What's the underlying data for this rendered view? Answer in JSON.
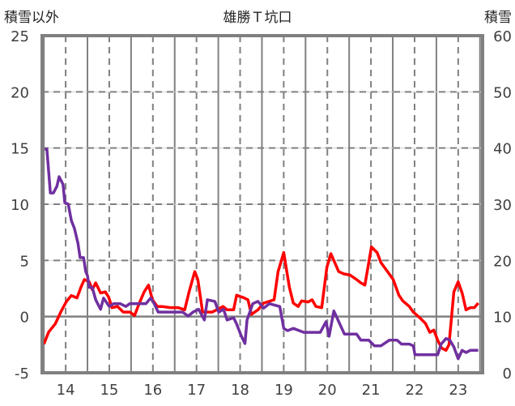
{
  "chart_data": {
    "type": "line",
    "title": "雄勝Ｔ坑口",
    "ylabel_left": "積雪以外",
    "ylabel_right": "積雪",
    "xlabel": "",
    "xlim": [
      13.46,
      23.56
    ],
    "ylim_left": [
      -5,
      25
    ],
    "ylim_right": [
      0,
      60
    ],
    "x_ticks": [
      14,
      15,
      16,
      17,
      18,
      19,
      20,
      21,
      22,
      23
    ],
    "x_tick_labels": [
      "14",
      "15",
      "16",
      "17",
      "18",
      "19",
      "20",
      "21",
      "22",
      "23"
    ],
    "y_left_ticks": [
      -5,
      0,
      5,
      10,
      15,
      20,
      25
    ],
    "y_left_tick_labels": [
      "-5",
      "0",
      "5",
      "10",
      "15",
      "20",
      "25"
    ],
    "y_right_ticks": [
      0,
      10,
      20,
      30,
      40,
      50,
      60
    ],
    "y_right_tick_labels": [
      "0",
      "10",
      "20",
      "30",
      "40",
      "50",
      "60"
    ],
    "grid": true,
    "legend": "none",
    "colors": {
      "red_series": "#ff0000",
      "purple_series": "#7030a0",
      "grid": "#808080",
      "frame": "#808080"
    },
    "series": [
      {
        "name": "積雪以外",
        "axis": "left",
        "color": "#ff0000",
        "points": [
          [
            13.5,
            -2.45
          ],
          [
            13.61,
            -1.37
          ],
          [
            13.76,
            -0.65
          ],
          [
            13.89,
            0.43
          ],
          [
            14.02,
            1.37
          ],
          [
            14.13,
            1.87
          ],
          [
            14.26,
            1.66
          ],
          [
            14.35,
            2.6
          ],
          [
            14.43,
            3.3
          ],
          [
            14.54,
            3.1
          ],
          [
            14.61,
            2.4
          ],
          [
            14.69,
            3.0
          ],
          [
            14.8,
            2.1
          ],
          [
            14.91,
            2.2
          ],
          [
            14.99,
            1.7
          ],
          [
            15.06,
            0.8
          ],
          [
            15.19,
            0.9
          ],
          [
            15.32,
            0.4
          ],
          [
            15.47,
            0.4
          ],
          [
            15.58,
            0.1
          ],
          [
            15.69,
            1.2
          ],
          [
            15.8,
            2.2
          ],
          [
            15.9,
            2.8
          ],
          [
            15.99,
            1.5
          ],
          [
            16.1,
            0.9
          ],
          [
            16.21,
            0.9
          ],
          [
            16.4,
            0.8
          ],
          [
            16.58,
            0.8
          ],
          [
            16.73,
            0.6
          ],
          [
            16.83,
            2.2
          ],
          [
            16.96,
            4.0
          ],
          [
            17.03,
            3.3
          ],
          [
            17.14,
            0.4
          ],
          [
            17.36,
            0.4
          ],
          [
            17.61,
            0.9
          ],
          [
            17.7,
            0.6
          ],
          [
            17.85,
            0.6
          ],
          [
            17.92,
            1.9
          ],
          [
            18.07,
            1.7
          ],
          [
            18.18,
            1.5
          ],
          [
            18.26,
            0.2
          ],
          [
            18.41,
            0.6
          ],
          [
            18.54,
            1.2
          ],
          [
            18.78,
            1.5
          ],
          [
            18.87,
            4.0
          ],
          [
            19.0,
            5.7
          ],
          [
            19.07,
            4.0
          ],
          [
            19.13,
            2.6
          ],
          [
            19.22,
            1.2
          ],
          [
            19.33,
            0.9
          ],
          [
            19.41,
            1.4
          ],
          [
            19.56,
            1.3
          ],
          [
            19.65,
            1.5
          ],
          [
            19.74,
            0.9
          ],
          [
            19.87,
            0.8
          ],
          [
            19.99,
            4.4
          ],
          [
            20.08,
            5.6
          ],
          [
            20.17,
            4.8
          ],
          [
            20.26,
            4.0
          ],
          [
            20.38,
            3.8
          ],
          [
            20.52,
            3.7
          ],
          [
            20.67,
            3.3
          ],
          [
            20.77,
            3.0
          ],
          [
            20.86,
            2.8
          ],
          [
            20.95,
            4.8
          ],
          [
            21.01,
            6.2
          ],
          [
            21.14,
            5.7
          ],
          [
            21.23,
            4.8
          ],
          [
            21.38,
            4.0
          ],
          [
            21.51,
            3.3
          ],
          [
            21.64,
            1.9
          ],
          [
            21.73,
            1.4
          ],
          [
            21.88,
            0.9
          ],
          [
            21.97,
            0.4
          ],
          [
            22.12,
            -0.1
          ],
          [
            22.25,
            -0.6
          ],
          [
            22.35,
            -1.4
          ],
          [
            22.44,
            -1.2
          ],
          [
            22.53,
            -2.1
          ],
          [
            22.62,
            -2.8
          ],
          [
            22.72,
            -3.0
          ],
          [
            22.79,
            -2.5
          ],
          [
            22.9,
            2.2
          ],
          [
            23.0,
            3.1
          ],
          [
            23.09,
            2.1
          ],
          [
            23.18,
            0.6
          ],
          [
            23.28,
            0.8
          ],
          [
            23.37,
            0.8
          ],
          [
            23.46,
            1.2
          ]
        ]
      },
      {
        "name": "積雪",
        "axis": "right",
        "color": "#7030a0",
        "points": [
          [
            13.52,
            39.8
          ],
          [
            13.57,
            39.8
          ],
          [
            13.65,
            32.0
          ],
          [
            13.72,
            32.0
          ],
          [
            13.8,
            33.2
          ],
          [
            13.85,
            34.9
          ],
          [
            13.94,
            33.5
          ],
          [
            13.98,
            30.3
          ],
          [
            14.06,
            30.0
          ],
          [
            14.13,
            27.1
          ],
          [
            14.2,
            25.7
          ],
          [
            14.28,
            23.1
          ],
          [
            14.33,
            20.5
          ],
          [
            14.41,
            20.5
          ],
          [
            14.46,
            18.0
          ],
          [
            14.5,
            17.3
          ],
          [
            14.54,
            15.2
          ],
          [
            14.61,
            15.2
          ],
          [
            14.69,
            13.0
          ],
          [
            14.8,
            11.3
          ],
          [
            14.87,
            13.3
          ],
          [
            15.0,
            11.8
          ],
          [
            15.1,
            12.3
          ],
          [
            15.25,
            12.3
          ],
          [
            15.38,
            11.8
          ],
          [
            15.47,
            12.3
          ],
          [
            15.69,
            12.3
          ],
          [
            15.84,
            12.3
          ],
          [
            15.95,
            13.3
          ],
          [
            16.03,
            12.3
          ],
          [
            16.12,
            10.8
          ],
          [
            16.4,
            10.8
          ],
          [
            16.68,
            10.8
          ],
          [
            16.81,
            10.1
          ],
          [
            16.92,
            10.8
          ],
          [
            17.05,
            11.3
          ],
          [
            17.18,
            9.4
          ],
          [
            17.25,
            13.0
          ],
          [
            17.42,
            12.7
          ],
          [
            17.51,
            10.8
          ],
          [
            17.62,
            11.3
          ],
          [
            17.7,
            9.4
          ],
          [
            17.85,
            9.8
          ],
          [
            17.92,
            8.7
          ],
          [
            18.03,
            6.5
          ],
          [
            18.11,
            5.2
          ],
          [
            18.16,
            9.4
          ],
          [
            18.29,
            12.3
          ],
          [
            18.41,
            12.7
          ],
          [
            18.54,
            11.5
          ],
          [
            18.67,
            12.3
          ],
          [
            18.81,
            12.0
          ],
          [
            18.91,
            11.8
          ],
          [
            19.0,
            7.9
          ],
          [
            19.09,
            7.5
          ],
          [
            19.22,
            7.9
          ],
          [
            19.46,
            7.2
          ],
          [
            19.84,
            7.2
          ],
          [
            19.97,
            9.1
          ],
          [
            20.04,
            6.5
          ],
          [
            20.15,
            11.0
          ],
          [
            20.26,
            9.1
          ],
          [
            20.39,
            6.9
          ],
          [
            20.67,
            6.9
          ],
          [
            20.77,
            5.8
          ],
          [
            20.95,
            5.8
          ],
          [
            21.08,
            4.8
          ],
          [
            21.23,
            4.8
          ],
          [
            21.42,
            5.8
          ],
          [
            21.6,
            5.8
          ],
          [
            21.7,
            5.1
          ],
          [
            21.88,
            5.1
          ],
          [
            21.97,
            4.8
          ],
          [
            22.01,
            3.2
          ],
          [
            22.53,
            3.2
          ],
          [
            22.61,
            5.1
          ],
          [
            22.72,
            6.1
          ],
          [
            22.81,
            5.8
          ],
          [
            22.9,
            4.6
          ],
          [
            23.0,
            2.5
          ],
          [
            23.09,
            4.0
          ],
          [
            23.18,
            3.6
          ],
          [
            23.28,
            4.0
          ],
          [
            23.46,
            4.0
          ]
        ]
      }
    ]
  }
}
